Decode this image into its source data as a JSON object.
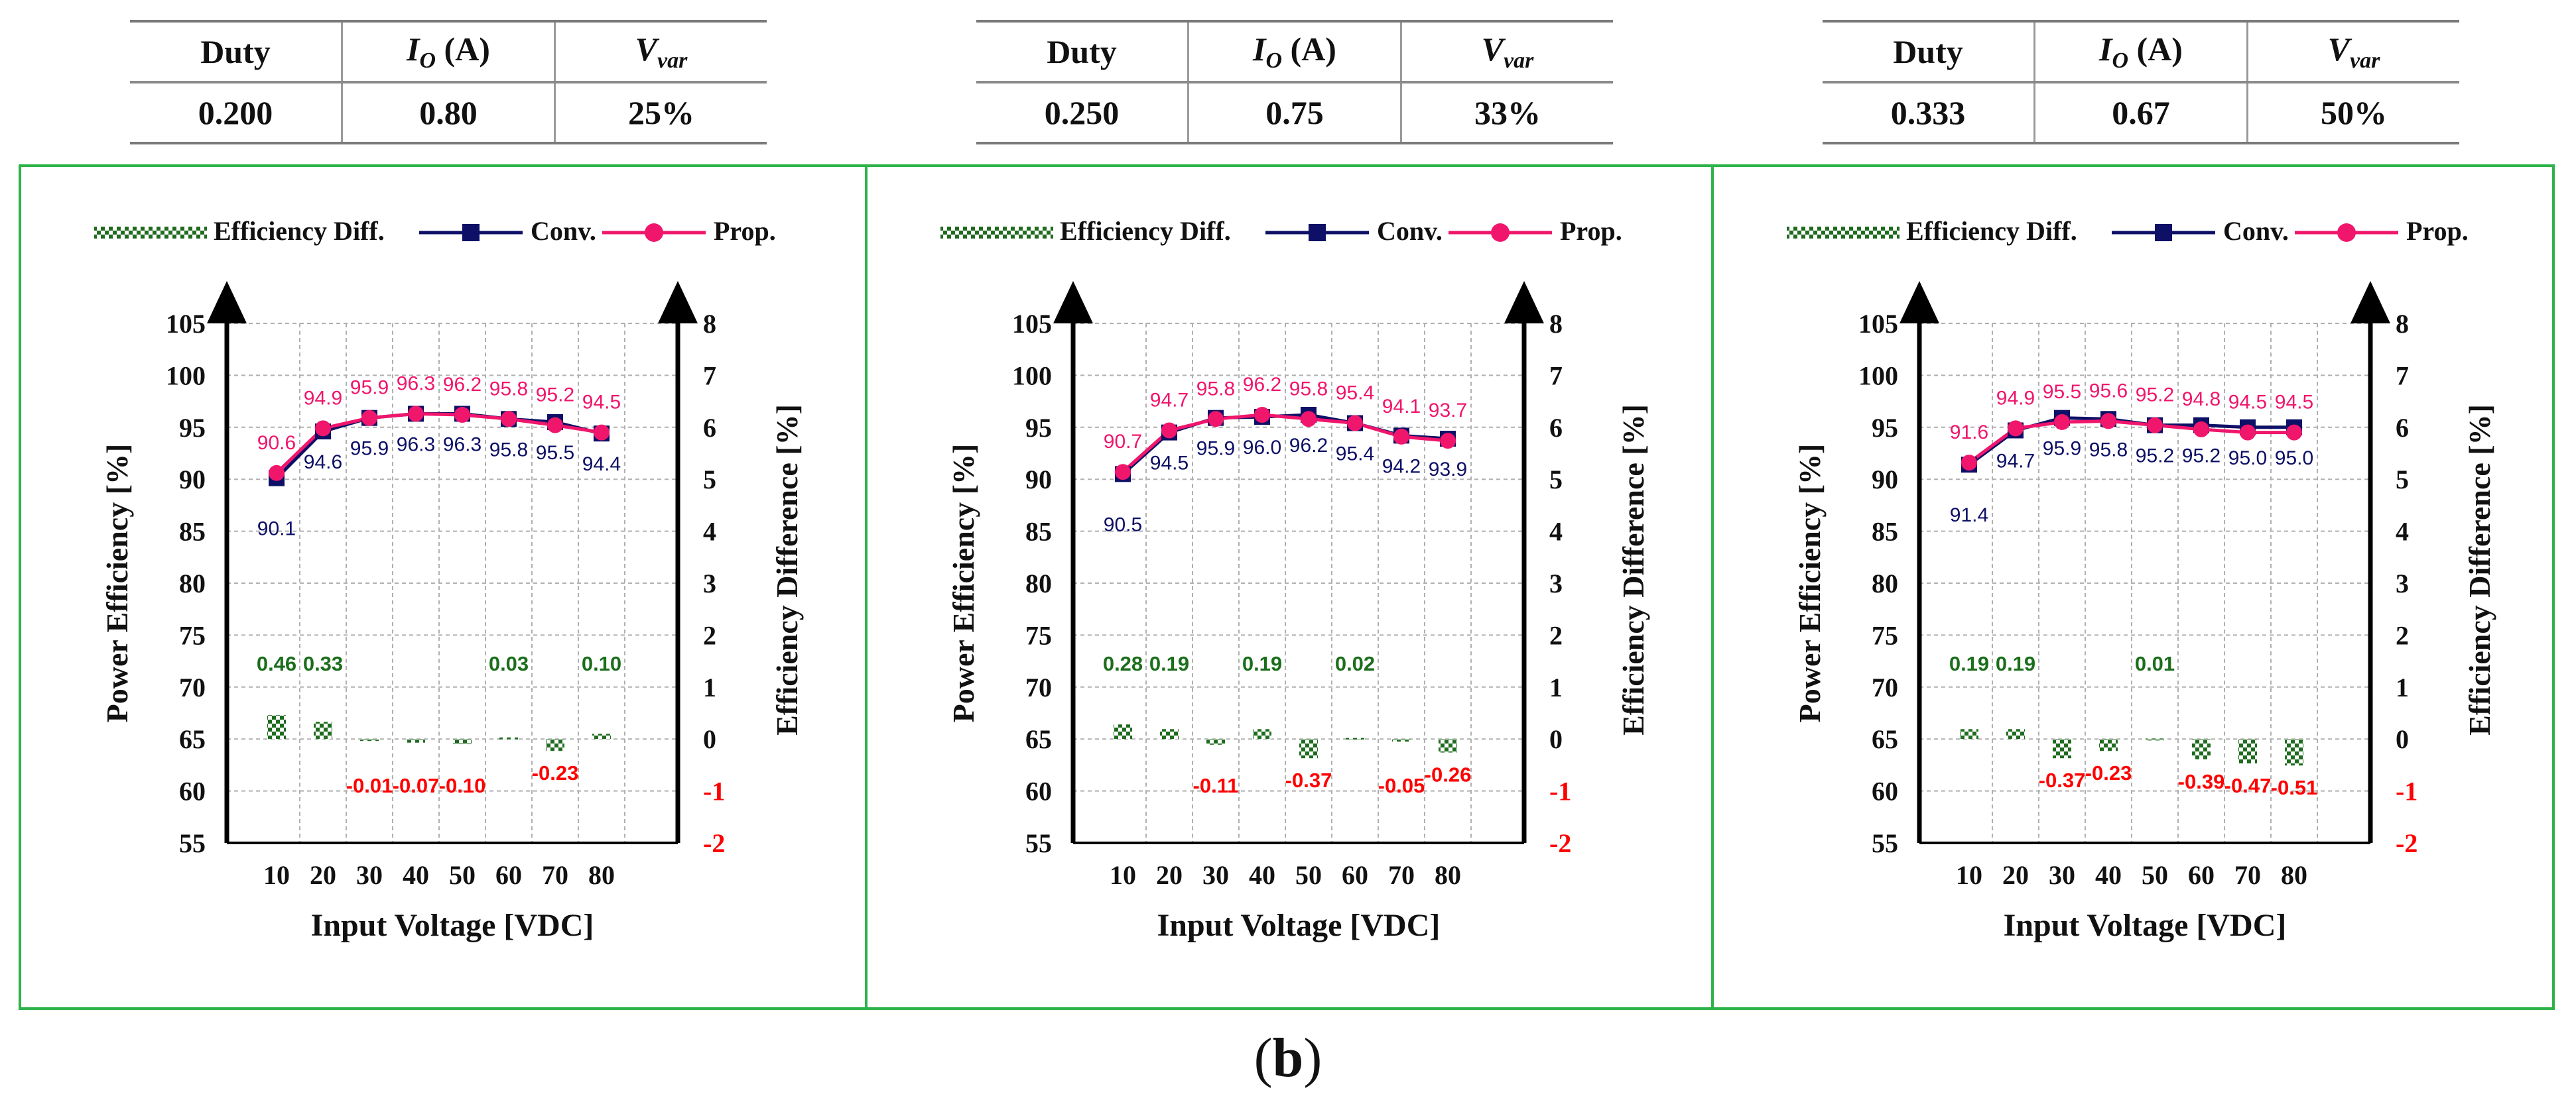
{
  "tables": [
    {
      "headers": [
        "Duty",
        "I",
        "O",
        "(A)",
        "V",
        "var"
      ],
      "row": [
        "0.200",
        "0.80",
        "25%"
      ]
    },
    {
      "headers": [
        "Duty",
        "I",
        "O",
        "(A)",
        "V",
        "var"
      ],
      "row": [
        "0.250",
        "0.75",
        "33%"
      ]
    },
    {
      "headers": [
        "Duty",
        "I",
        "O",
        "(A)",
        "V",
        "var"
      ],
      "row": [
        "0.333",
        "0.67",
        "50%"
      ]
    }
  ],
  "legend": {
    "diff": "Efficiency Diff.",
    "conv": "Conv.",
    "prop": "Prop."
  },
  "colors": {
    "diff": "#1e6b1e",
    "conv": "#0d1066",
    "prop": "#f0166c",
    "diff_label": "#1b6e1b",
    "neg_label": "#ff0000",
    "frame": "#2eb34a"
  },
  "chart_data": [
    {
      "type": "line+bar",
      "x": [
        10,
        20,
        30,
        40,
        50,
        60,
        70,
        80
      ],
      "xlabel": "Input Voltage [VDC]",
      "ylabel": "Power Efficiency [%]",
      "y2label": "Efficiency Difference [%]",
      "ylim": [
        55,
        105
      ],
      "y2lim": [
        -2,
        8
      ],
      "yticks": [
        55,
        60,
        65,
        70,
        75,
        80,
        85,
        90,
        95,
        100,
        105
      ],
      "y2ticks": [
        -2,
        -1,
        0,
        1,
        2,
        3,
        4,
        5,
        6,
        7,
        8
      ],
      "series": [
        {
          "name": "Conv.",
          "values": [
            90.1,
            94.6,
            95.9,
            96.3,
            96.3,
            95.8,
            95.5,
            94.4
          ]
        },
        {
          "name": "Prop.",
          "values": [
            90.6,
            94.9,
            95.9,
            96.3,
            96.2,
            95.8,
            95.2,
            94.5
          ]
        }
      ],
      "diff": [
        0.46,
        0.33,
        -0.01,
        -0.07,
        -0.1,
        0.03,
        -0.23,
        0.1
      ],
      "diff_labels": [
        "0.46",
        "0.33",
        "-0.01",
        "-0.07",
        "-0.10",
        "0.03",
        "-0.23",
        "0.10"
      ]
    },
    {
      "type": "line+bar",
      "x": [
        10,
        20,
        30,
        40,
        50,
        60,
        70,
        80
      ],
      "xlabel": "Input Voltage [VDC]",
      "ylabel": "Power Efficiency [%]",
      "y2label": "Efficiency Difference [%]",
      "ylim": [
        55,
        105
      ],
      "y2lim": [
        -2,
        8
      ],
      "yticks": [
        55,
        60,
        65,
        70,
        75,
        80,
        85,
        90,
        95,
        100,
        105
      ],
      "y2ticks": [
        -2,
        -1,
        0,
        1,
        2,
        3,
        4,
        5,
        6,
        7,
        8
      ],
      "series": [
        {
          "name": "Conv.",
          "values": [
            90.5,
            94.5,
            95.9,
            96.0,
            96.2,
            95.4,
            94.2,
            93.9
          ]
        },
        {
          "name": "Prop.",
          "values": [
            90.7,
            94.7,
            95.8,
            96.2,
            95.8,
            95.4,
            94.1,
            93.7
          ]
        }
      ],
      "diff": [
        0.28,
        0.19,
        -0.11,
        0.19,
        -0.37,
        0.02,
        -0.05,
        -0.26
      ],
      "diff_labels": [
        "0.28",
        "0.19",
        "-0.11",
        "0.19",
        "-0.37",
        "0.02",
        "-0.05",
        "-0.26"
      ]
    },
    {
      "type": "line+bar",
      "x": [
        10,
        20,
        30,
        40,
        50,
        60,
        70,
        80
      ],
      "xlabel": "Input Voltage [VDC]",
      "ylabel": "Power Efficiency [%]",
      "y2label": "Efficiency Difference [%]",
      "ylim": [
        55,
        105
      ],
      "y2lim": [
        -2,
        8
      ],
      "yticks": [
        55,
        60,
        65,
        70,
        75,
        80,
        85,
        90,
        95,
        100,
        105
      ],
      "y2ticks": [
        -2,
        -1,
        0,
        1,
        2,
        3,
        4,
        5,
        6,
        7,
        8
      ],
      "series": [
        {
          "name": "Conv.",
          "values": [
            91.4,
            94.7,
            95.9,
            95.8,
            95.2,
            95.2,
            95.0,
            95.0
          ]
        },
        {
          "name": "Prop.",
          "values": [
            91.6,
            94.9,
            95.5,
            95.6,
            95.2,
            94.8,
            94.5,
            94.5
          ]
        }
      ],
      "diff": [
        0.19,
        0.19,
        -0.37,
        -0.23,
        0.01,
        -0.39,
        -0.47,
        -0.51
      ],
      "diff_labels": [
        "0.19",
        "0.19",
        "-0.37",
        "-0.23",
        "0.01",
        "-0.39",
        "-0.47",
        "-0.51"
      ]
    }
  ],
  "caption": {
    "open": "(",
    "letter": "b",
    "close": ")"
  }
}
